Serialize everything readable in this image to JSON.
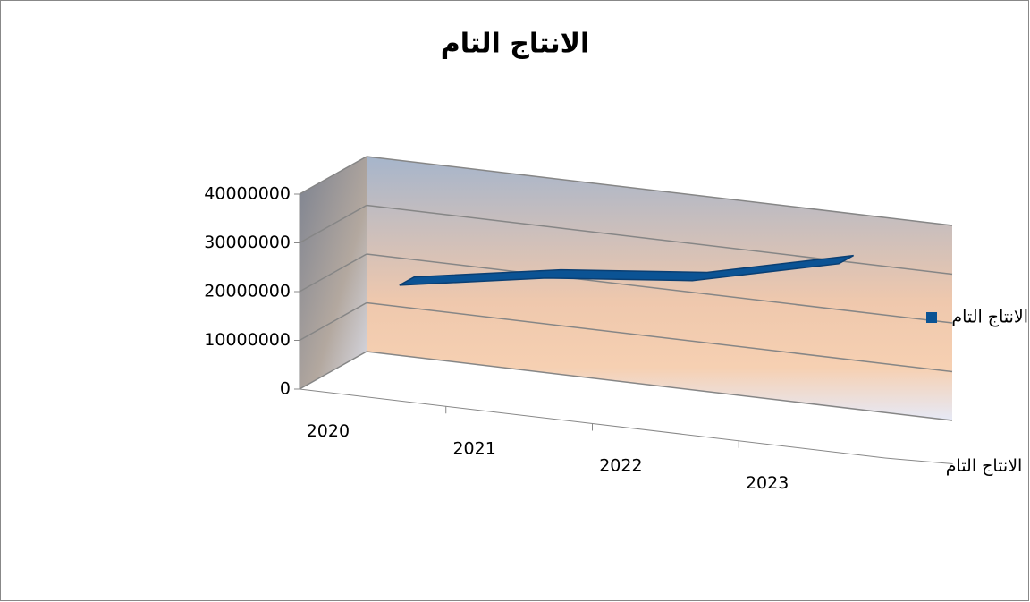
{
  "chart_data": {
    "type": "line3d",
    "title": "الانتاج التام",
    "categories": [
      "2020",
      "2021",
      "2022",
      "2023"
    ],
    "series": [
      {
        "name": "الانتاج التام",
        "color": "#0b5394",
        "values": [
          20000000,
          25000000,
          28000000,
          35000000
        ]
      }
    ],
    "ylim": [
      0,
      40000000
    ],
    "yticks": [
      0,
      10000000,
      20000000,
      30000000,
      40000000
    ],
    "grid": true,
    "legend": "right"
  }
}
